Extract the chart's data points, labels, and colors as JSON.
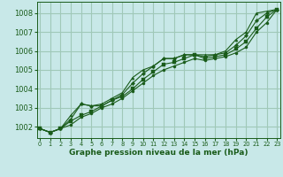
{
  "background_color": "#c8e8e8",
  "grid_color": "#a0c8b8",
  "line_color": "#1a5c1a",
  "title": "Graphe pression niveau de la mer (hPa)",
  "xlim": [
    -0.3,
    23.3
  ],
  "ylim": [
    1001.4,
    1008.6
  ],
  "yticks": [
    1002,
    1003,
    1004,
    1005,
    1006,
    1007,
    1008
  ],
  "xticks": [
    0,
    1,
    2,
    3,
    4,
    5,
    6,
    7,
    8,
    9,
    10,
    11,
    12,
    13,
    14,
    15,
    16,
    17,
    18,
    19,
    20,
    21,
    22,
    23
  ],
  "series": [
    [
      1001.9,
      1001.7,
      1001.9,
      1002.6,
      1003.2,
      1003.1,
      1003.2,
      1003.5,
      1003.8,
      1004.6,
      1005.0,
      1005.2,
      1005.6,
      1005.6,
      1005.8,
      1005.8,
      1005.8,
      1005.8,
      1006.0,
      1006.6,
      1007.0,
      1008.0,
      1008.1,
      1008.2
    ],
    [
      1001.9,
      1001.7,
      1001.9,
      1002.4,
      1003.2,
      1003.1,
      1003.1,
      1003.4,
      1003.7,
      1004.3,
      1004.8,
      1005.2,
      1005.6,
      1005.6,
      1005.8,
      1005.8,
      1005.7,
      1005.8,
      1005.9,
      1006.3,
      1006.8,
      1007.6,
      1008.0,
      1008.2
    ],
    [
      1001.9,
      1001.7,
      1001.9,
      1002.3,
      1002.6,
      1002.8,
      1003.1,
      1003.4,
      1003.6,
      1004.0,
      1004.5,
      1004.9,
      1005.3,
      1005.4,
      1005.6,
      1005.8,
      1005.6,
      1005.7,
      1005.8,
      1006.1,
      1006.5,
      1007.2,
      1007.8,
      1008.2
    ],
    [
      1001.9,
      1001.7,
      1001.9,
      1002.1,
      1002.5,
      1002.7,
      1003.0,
      1003.2,
      1003.5,
      1003.9,
      1004.3,
      1004.7,
      1005.0,
      1005.2,
      1005.4,
      1005.6,
      1005.5,
      1005.6,
      1005.7,
      1005.9,
      1006.2,
      1007.0,
      1007.5,
      1008.2
    ]
  ]
}
